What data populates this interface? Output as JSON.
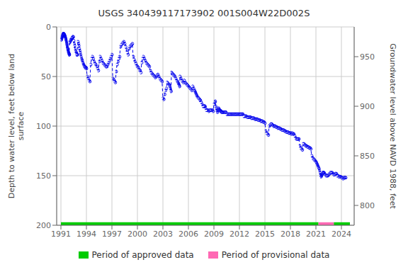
{
  "chart_data": {
    "type": "line",
    "title": "USGS 340439117173902 001S004W22D002S",
    "ylabel": "Depth to water level, feet below land\nsurface",
    "y2label": "Groundwater level above NAVD 1988, feet",
    "xlim": [
      1990.5,
      2025.5
    ],
    "xticks": [
      1991,
      1994,
      1997,
      2000,
      2003,
      2006,
      2009,
      2012,
      2015,
      2018,
      2021,
      2024
    ],
    "ylim": [
      200,
      0
    ],
    "yticks": [
      0,
      50,
      100,
      150,
      200
    ],
    "y2lim": [
      780,
      980
    ],
    "y2ticks": [
      800,
      850,
      900,
      950
    ],
    "grid": true,
    "legend": "bottom",
    "x": [
      1991.05,
      1991.07,
      1991.09,
      1991.11,
      1991.13,
      1991.15,
      1991.17,
      1991.19,
      1991.21,
      1991.23,
      1991.25,
      1991.27,
      1991.29,
      1991.31,
      1991.33,
      1991.35,
      1991.37,
      1991.39,
      1991.41,
      1991.43,
      1991.45,
      1991.47,
      1991.49,
      1991.51,
      1991.53,
      1991.55,
      1991.57,
      1991.59,
      1991.61,
      1991.63,
      1991.65,
      1991.67,
      1991.69,
      1991.71,
      1991.73,
      1991.75,
      1991.77,
      1991.79,
      1991.81,
      1991.83,
      1991.85,
      1991.87,
      1991.89,
      1991.91,
      1991.93,
      1991.95,
      1991.97,
      1991.99,
      1992.0,
      1992.05,
      1992.1,
      1992.15,
      1992.2,
      1992.25,
      1992.3,
      1992.35,
      1992.4,
      1992.45,
      1992.5,
      1992.55,
      1992.6,
      1992.65,
      1992.7,
      1992.75,
      1992.8,
      1992.85,
      1992.9,
      1992.95,
      1993.0,
      1993.05,
      1993.1,
      1993.15,
      1993.2,
      1993.25,
      1993.3,
      1993.35,
      1993.4,
      1993.45,
      1993.5,
      1993.55,
      1993.6,
      1993.65,
      1993.7,
      1993.75,
      1993.8,
      1993.85,
      1993.9,
      1993.95,
      1994.0,
      1994.1,
      1994.2,
      1994.3,
      1994.4,
      1994.5,
      1994.6,
      1994.7,
      1994.8,
      1994.9,
      1995.0,
      1995.1,
      1995.2,
      1995.3,
      1995.4,
      1995.5,
      1995.6,
      1995.7,
      1995.8,
      1995.9,
      1996.0,
      1996.1,
      1996.2,
      1996.3,
      1996.4,
      1996.5,
      1996.6,
      1996.7,
      1996.8,
      1996.9,
      1997.0,
      1997.1,
      1997.2,
      1997.3,
      1997.4,
      1997.5,
      1997.6,
      1997.7,
      1997.8,
      1997.9,
      1998.0,
      1998.1,
      1998.2,
      1998.3,
      1998.4,
      1998.5,
      1998.6,
      1998.7,
      1998.8,
      1998.9,
      1999.0,
      1999.1,
      1999.2,
      1999.3,
      1999.4,
      1999.5,
      1999.6,
      1999.7,
      1999.8,
      1999.9,
      2000.0,
      2000.1,
      2000.2,
      2000.3,
      2000.4,
      2000.5,
      2000.6,
      2000.7,
      2000.8,
      2000.9,
      2001.0,
      2001.1,
      2001.2,
      2001.3,
      2001.4,
      2001.5,
      2001.6,
      2001.7,
      2001.8,
      2001.9,
      2002.0,
      2002.1,
      2002.2,
      2002.3,
      2002.4,
      2002.5,
      2002.6,
      2002.7,
      2002.8,
      2002.9,
      2003.0,
      2003.1,
      2003.2,
      2003.3,
      2003.4,
      2003.5,
      2003.6,
      2003.7,
      2003.75,
      2003.8,
      2003.85,
      2003.9,
      2003.95,
      2004.0,
      2004.1,
      2004.2,
      2004.3,
      2004.4,
      2004.5,
      2004.6,
      2004.7,
      2004.75,
      2004.8,
      2004.85,
      2004.9,
      2004.95,
      2005.0,
      2005.1,
      2005.2,
      2005.3,
      2005.4,
      2005.5,
      2005.6,
      2005.7,
      2005.8,
      2005.9,
      2006.0,
      2006.1,
      2006.2,
      2006.3,
      2006.4,
      2006.5,
      2006.6,
      2006.7,
      2006.75,
      2006.8,
      2006.85,
      2006.9,
      2006.95,
      2007.0,
      2007.1,
      2007.2,
      2007.3,
      2007.35,
      2007.4,
      2007.5,
      2007.6,
      2007.7,
      2007.8,
      2007.85,
      2007.9,
      2007.95,
      2008.0,
      2008.1,
      2008.2,
      2008.3,
      2008.4,
      2008.5,
      2008.6,
      2008.7,
      2008.8,
      2008.9,
      2009.0,
      2009.1,
      2009.15,
      2009.2,
      2009.25,
      2009.3,
      2009.35,
      2009.4,
      2009.45,
      2009.5,
      2009.55,
      2009.6,
      2009.65,
      2009.7,
      2009.75,
      2009.8,
      2009.85,
      2009.9,
      2009.95,
      2010.0,
      2010.1,
      2010.2,
      2010.3,
      2010.4,
      2010.5,
      2010.6,
      2010.7,
      2010.8,
      2010.9,
      2011.0,
      2011.1,
      2011.2,
      2011.3,
      2011.4,
      2011.5,
      2011.6,
      2011.7,
      2011.8,
      2011.9,
      2012.0,
      2012.1,
      2012.2,
      2012.3,
      2012.4,
      2012.5,
      2012.6,
      2012.7,
      2012.8,
      2012.9,
      2013.0,
      2013.1,
      2013.2,
      2013.3,
      2013.4,
      2013.5,
      2013.6,
      2013.7,
      2013.8,
      2013.9,
      2014.0,
      2014.1,
      2014.2,
      2014.3,
      2014.4,
      2014.5,
      2014.6,
      2014.7,
      2014.8,
      2014.9,
      2015.0,
      2015.1,
      2015.2,
      2015.3,
      2015.4,
      2015.5,
      2015.6,
      2015.7,
      2015.8,
      2015.9,
      2016.0,
      2016.1,
      2016.2,
      2016.3,
      2016.4,
      2016.5,
      2016.6,
      2016.7,
      2016.8,
      2016.9,
      2017.0,
      2017.1,
      2017.2,
      2017.3,
      2017.4,
      2017.5,
      2017.6,
      2017.7,
      2017.8,
      2017.9,
      2018.0,
      2018.1,
      2018.2,
      2018.3,
      2018.4,
      2018.5,
      2018.6,
      2018.7,
      2018.8,
      2018.9,
      2019.0,
      2019.1,
      2019.2,
      2019.3,
      2019.4,
      2019.5,
      2019.6,
      2019.7,
      2019.8,
      2019.9,
      2020.0,
      2020.1,
      2020.2,
      2020.3,
      2020.4,
      2020.5,
      2020.6,
      2020.7,
      2020.8,
      2020.9,
      2021.0,
      2021.05,
      2021.1,
      2021.15,
      2021.2,
      2021.25,
      2021.3,
      2021.35,
      2021.4,
      2021.45,
      2021.5,
      2021.55,
      2021.6,
      2021.65,
      2021.7,
      2021.75,
      2021.8,
      2021.85,
      2021.9,
      2021.95,
      2022.0,
      2022.1,
      2022.2,
      2022.3,
      2022.4,
      2022.5,
      2022.6,
      2022.7,
      2022.8,
      2022.9,
      2023.0,
      2023.1,
      2023.2,
      2023.3,
      2023.4,
      2023.5,
      2023.6,
      2023.7,
      2023.8,
      2023.9,
      2024.0,
      2024.1,
      2024.2,
      2024.3,
      2024.4,
      2024.5
    ],
    "series": [
      {
        "color": "#0000ee",
        "marker": "circle",
        "line_style": "dashed",
        "values": [
          13,
          12,
          11,
          10,
          10,
          9,
          9,
          8,
          8,
          8,
          7,
          7,
          7,
          7,
          7,
          7,
          8,
          8,
          8,
          9,
          9,
          10,
          10,
          11,
          12,
          12,
          13,
          14,
          15,
          16,
          17,
          18,
          19,
          20,
          21,
          22,
          22,
          23,
          24,
          25,
          25,
          26,
          26,
          27,
          27,
          27,
          28,
          28,
          16,
          15,
          14,
          13,
          13,
          12,
          11,
          11,
          10,
          10,
          14,
          17,
          19,
          22,
          24,
          25,
          27,
          28,
          28,
          28,
          15,
          17,
          19,
          22,
          24,
          26,
          28,
          30,
          32,
          33,
          34,
          36,
          37,
          38,
          39,
          40,
          40,
          41,
          41,
          41,
          42,
          50,
          52,
          54,
          55,
          38,
          32,
          30,
          32,
          35,
          37,
          38,
          40,
          42,
          44,
          35,
          30,
          32,
          34,
          36,
          37,
          38,
          39,
          40,
          40,
          38,
          36,
          34,
          32,
          30,
          28,
          52,
          53,
          55,
          56,
          45,
          38,
          35,
          32,
          30,
          20,
          18,
          17,
          16,
          15,
          17,
          20,
          23,
          26,
          28,
          22,
          20,
          19,
          18,
          17,
          30,
          33,
          35,
          37,
          39,
          40,
          41,
          43,
          44,
          46,
          36,
          32,
          30,
          32,
          34,
          36,
          37,
          38,
          39,
          40,
          44,
          46,
          47,
          48,
          49,
          50,
          51,
          50,
          49,
          48,
          50,
          52,
          53,
          54,
          55,
          72,
          73,
          68,
          64,
          62,
          56,
          57,
          58,
          59,
          60,
          62,
          64,
          65,
          46,
          47,
          48,
          49,
          50,
          52,
          54,
          55,
          56,
          57,
          58,
          59,
          60,
          50,
          52,
          54,
          55,
          56,
          54,
          56,
          57,
          58,
          59,
          60,
          61,
          62,
          63,
          64,
          60,
          62,
          64,
          65,
          66,
          67,
          68,
          69,
          70,
          71,
          72,
          73,
          74,
          74,
          76,
          78,
          80,
          80,
          80,
          80,
          80,
          82,
          84,
          84,
          84,
          85,
          84,
          84,
          84,
          84,
          85,
          78,
          76,
          75,
          80,
          82,
          84,
          85,
          86,
          84,
          83,
          82,
          83,
          84,
          84,
          85,
          85,
          85,
          86,
          86,
          86,
          86,
          86,
          86,
          86,
          88,
          88,
          88,
          88,
          88,
          88,
          88,
          88,
          88,
          88,
          88,
          88,
          88,
          88,
          88,
          88,
          88,
          88,
          88,
          88,
          90,
          90,
          90,
          90,
          91,
          91,
          91,
          91,
          91,
          92,
          92,
          92,
          92,
          93,
          93,
          93,
          93,
          94,
          94,
          94,
          95,
          95,
          95,
          96,
          96,
          97,
          105,
          107,
          108,
          109,
          100,
          99,
          98,
          98,
          99,
          100,
          100,
          100,
          101,
          101,
          102,
          102,
          102,
          103,
          103,
          104,
          104,
          104,
          105,
          105,
          106,
          106,
          106,
          107,
          107,
          107,
          108,
          107,
          108,
          108,
          110,
          112,
          113,
          113,
          113,
          113,
          120,
          122,
          123,
          124,
          118,
          118,
          119,
          120,
          120,
          121,
          121,
          122,
          122,
          123,
          130,
          132,
          133,
          134,
          135,
          136,
          137,
          138,
          139,
          140,
          141,
          142,
          143,
          145,
          147,
          149,
          150,
          151,
          150,
          149,
          148,
          147,
          147,
          147,
          147,
          148,
          149,
          150,
          150,
          150,
          149,
          148,
          147,
          147,
          147,
          148,
          149,
          149,
          148,
          148,
          150,
          150,
          151,
          151,
          151,
          152,
          152,
          153,
          152,
          152,
          152
        ]
      }
    ],
    "periods": [
      {
        "name": "Period of approved data",
        "color": "#00cc00",
        "ranges": [
          [
            1991.0,
            2021.3
          ],
          [
            2023.1,
            2025.0
          ]
        ]
      },
      {
        "name": "Period of provisional data",
        "color": "#ff69b4",
        "ranges": [
          [
            2021.3,
            2023.1
          ]
        ]
      }
    ]
  }
}
